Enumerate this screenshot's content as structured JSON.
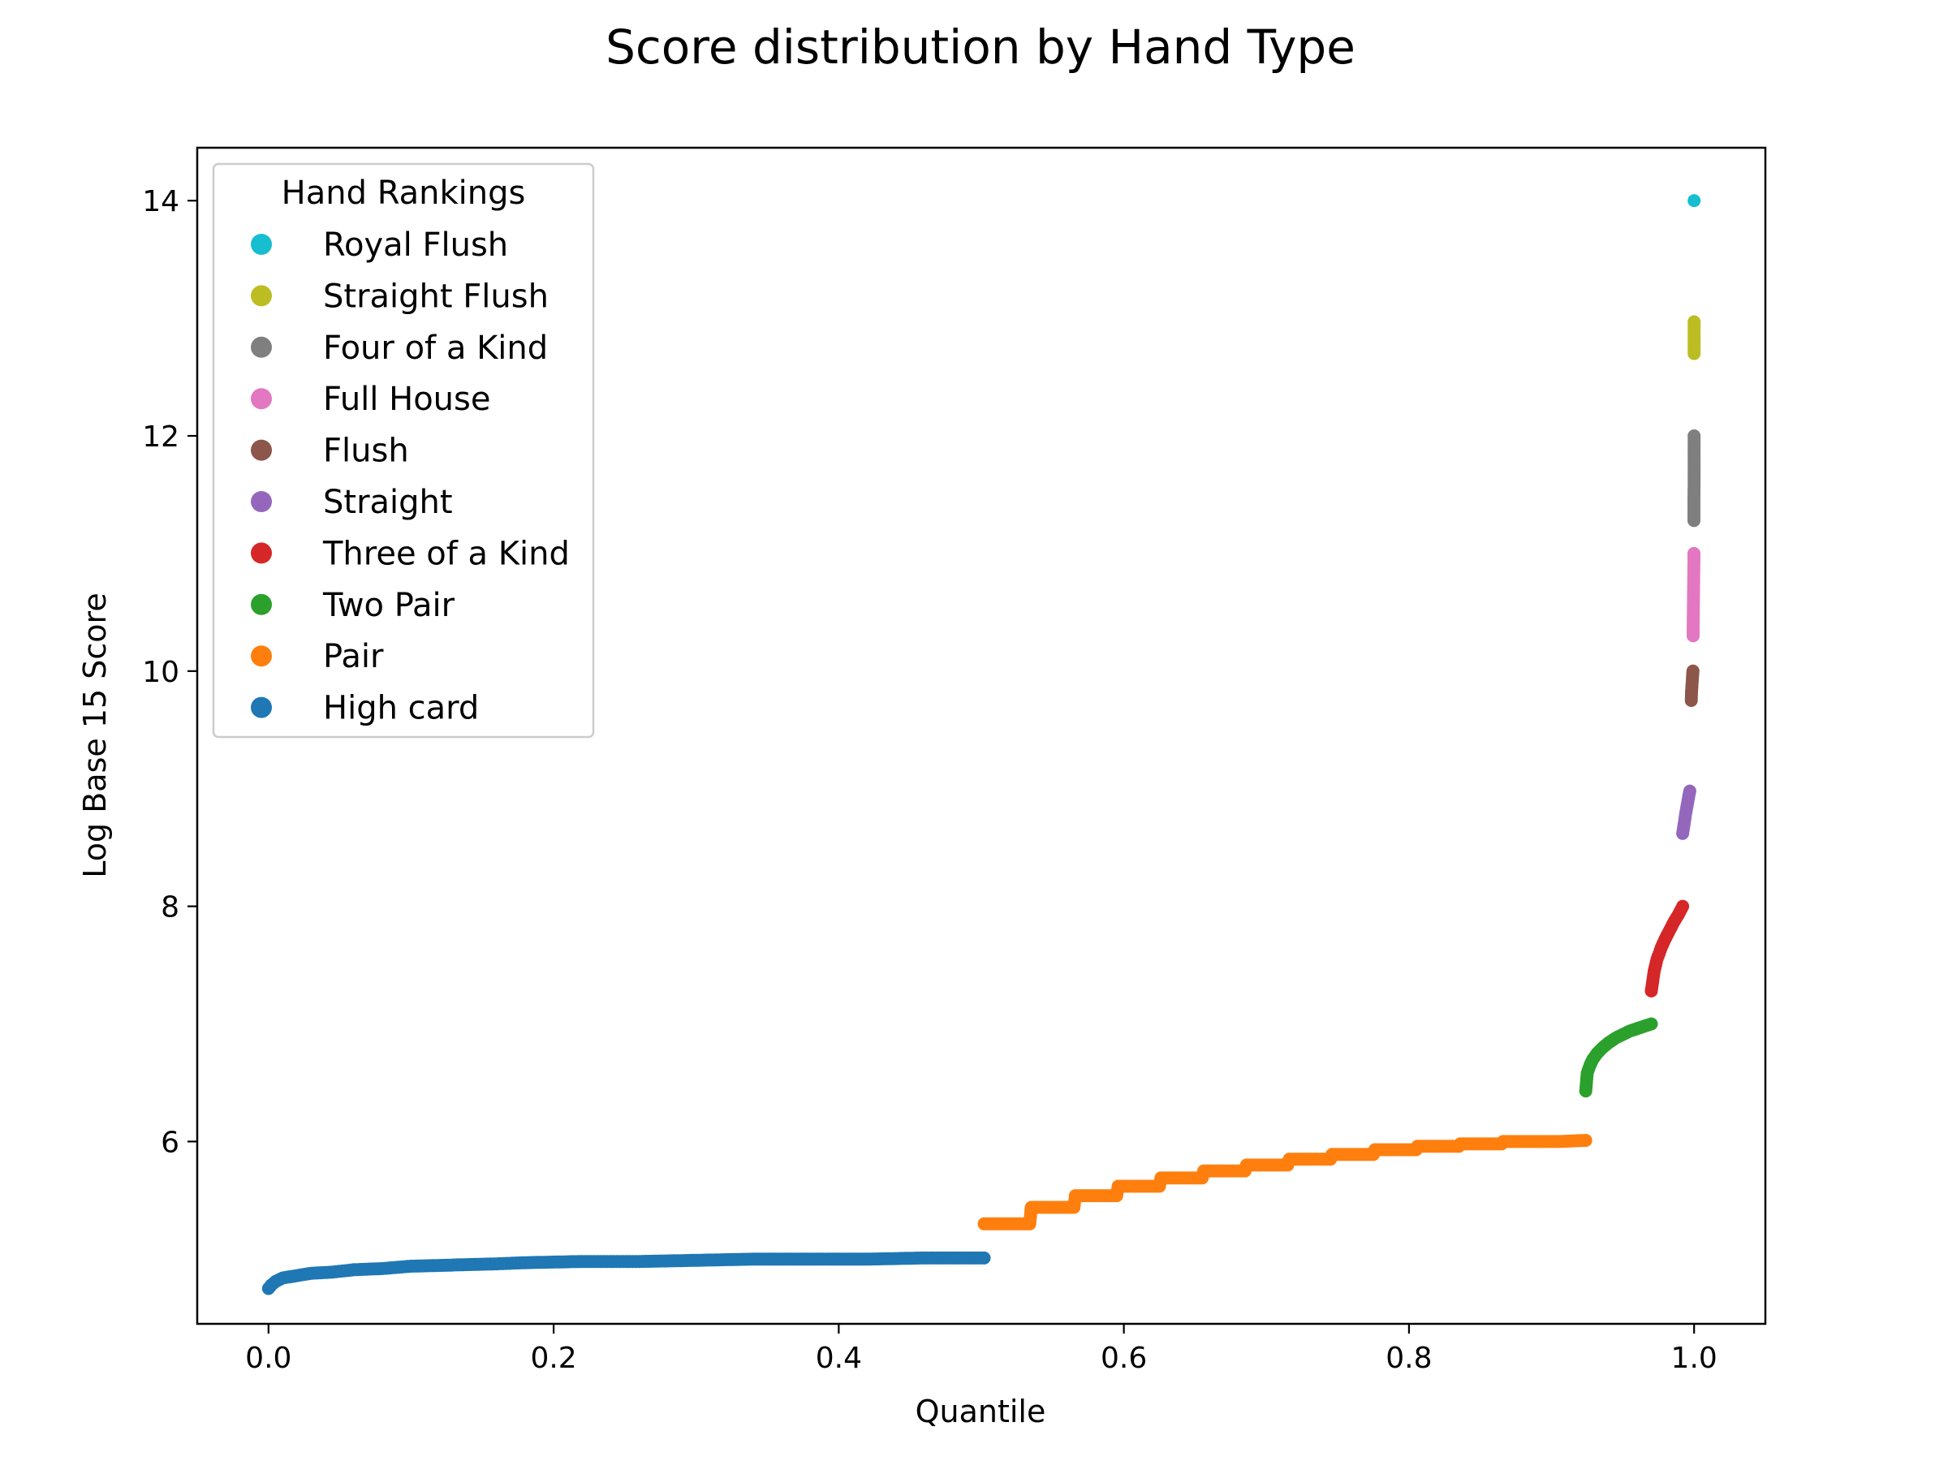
{
  "chart_data": {
    "type": "scatter",
    "title": "Score distribution by Hand Type",
    "xlabel": "Quantile",
    "ylabel": "Log Base 15 Score",
    "xlim": [
      -0.05,
      1.05
    ],
    "ylim": [
      4.45,
      14.45
    ],
    "xticks": [
      0.0,
      0.2,
      0.4,
      0.6,
      0.8,
      1.0
    ],
    "xtick_labels": [
      "0.0",
      "0.2",
      "0.4",
      "0.6",
      "0.8",
      "1.0"
    ],
    "yticks": [
      6,
      8,
      10,
      12,
      14
    ],
    "ytick_labels": [
      "6",
      "8",
      "10",
      "12",
      "14"
    ],
    "grid": false,
    "legend": {
      "title": "Hand Rankings",
      "placement": "upper-left",
      "entries": [
        {
          "name": "Royal Flush",
          "color": "#17becf"
        },
        {
          "name": "Straight Flush",
          "color": "#bcbd22"
        },
        {
          "name": "Four of a Kind",
          "color": "#7f7f7f"
        },
        {
          "name": "Full House",
          "color": "#e377c2"
        },
        {
          "name": "Flush",
          "color": "#8c564b"
        },
        {
          "name": "Straight",
          "color": "#9467bd"
        },
        {
          "name": "Three of a Kind",
          "color": "#d62728"
        },
        {
          "name": "Two Pair",
          "color": "#2ca02c"
        },
        {
          "name": "Pair",
          "color": "#ff7f0e"
        },
        {
          "name": "High card",
          "color": "#1f77b4"
        }
      ]
    },
    "series": [
      {
        "name": "High card",
        "color": "#1f77b4",
        "points": [
          [
            0.0,
            4.75
          ],
          [
            0.002,
            4.78
          ],
          [
            0.005,
            4.81
          ],
          [
            0.01,
            4.84
          ],
          [
            0.02,
            4.86
          ],
          [
            0.03,
            4.88
          ],
          [
            0.045,
            4.89
          ],
          [
            0.06,
            4.91
          ],
          [
            0.08,
            4.92
          ],
          [
            0.1,
            4.94
          ],
          [
            0.13,
            4.95
          ],
          [
            0.16,
            4.96
          ],
          [
            0.18,
            4.97
          ],
          [
            0.22,
            4.98
          ],
          [
            0.26,
            4.98
          ],
          [
            0.3,
            4.99
          ],
          [
            0.34,
            5.0
          ],
          [
            0.38,
            5.0
          ],
          [
            0.42,
            5.0
          ],
          [
            0.46,
            5.01
          ],
          [
            0.502,
            5.01
          ]
        ]
      },
      {
        "name": "Pair",
        "color": "#ff7f0e",
        "points": [
          [
            0.502,
            5.3
          ],
          [
            0.534,
            5.3
          ],
          [
            0.535,
            5.44
          ],
          [
            0.565,
            5.44
          ],
          [
            0.566,
            5.54
          ],
          [
            0.595,
            5.54
          ],
          [
            0.596,
            5.62
          ],
          [
            0.625,
            5.62
          ],
          [
            0.626,
            5.69
          ],
          [
            0.655,
            5.69
          ],
          [
            0.656,
            5.75
          ],
          [
            0.685,
            5.75
          ],
          [
            0.686,
            5.8
          ],
          [
            0.715,
            5.8
          ],
          [
            0.716,
            5.85
          ],
          [
            0.745,
            5.85
          ],
          [
            0.746,
            5.89
          ],
          [
            0.775,
            5.89
          ],
          [
            0.776,
            5.93
          ],
          [
            0.805,
            5.93
          ],
          [
            0.806,
            5.96
          ],
          [
            0.835,
            5.96
          ],
          [
            0.836,
            5.98
          ],
          [
            0.865,
            5.98
          ],
          [
            0.866,
            6.0
          ],
          [
            0.905,
            6.0
          ],
          [
            0.924,
            6.01
          ]
        ]
      },
      {
        "name": "Two Pair",
        "color": "#2ca02c",
        "points": [
          [
            0.924,
            6.43
          ],
          [
            0.925,
            6.58
          ],
          [
            0.927,
            6.65
          ],
          [
            0.929,
            6.7
          ],
          [
            0.932,
            6.75
          ],
          [
            0.936,
            6.8
          ],
          [
            0.94,
            6.84
          ],
          [
            0.945,
            6.88
          ],
          [
            0.95,
            6.91
          ],
          [
            0.955,
            6.94
          ],
          [
            0.96,
            6.96
          ],
          [
            0.965,
            6.98
          ],
          [
            0.97,
            7.0
          ]
        ]
      },
      {
        "name": "Three of a Kind",
        "color": "#d62728",
        "points": [
          [
            0.97,
            7.28
          ],
          [
            0.972,
            7.45
          ],
          [
            0.974,
            7.55
          ],
          [
            0.977,
            7.65
          ],
          [
            0.98,
            7.73
          ],
          [
            0.983,
            7.8
          ],
          [
            0.986,
            7.87
          ],
          [
            0.989,
            7.93
          ],
          [
            0.992,
            8.0
          ]
        ]
      },
      {
        "name": "Straight",
        "color": "#9467bd",
        "points": [
          [
            0.992,
            8.62
          ],
          [
            0.993,
            8.7
          ],
          [
            0.994,
            8.78
          ],
          [
            0.995,
            8.85
          ],
          [
            0.996,
            8.92
          ],
          [
            0.997,
            8.98
          ]
        ]
      },
      {
        "name": "Flush",
        "color": "#8c564b",
        "points": [
          [
            0.998,
            9.75
          ],
          [
            0.9982,
            9.82
          ],
          [
            0.9985,
            9.88
          ],
          [
            0.9988,
            9.93
          ],
          [
            0.999,
            9.97
          ],
          [
            0.9992,
            10.0
          ]
        ]
      },
      {
        "name": "Full House",
        "color": "#e377c2",
        "points": [
          [
            0.9993,
            10.3
          ],
          [
            0.9994,
            10.45
          ],
          [
            0.9995,
            10.55
          ],
          [
            0.9996,
            10.65
          ],
          [
            0.9997,
            10.75
          ],
          [
            0.9998,
            10.85
          ],
          [
            0.9999,
            10.95
          ],
          [
            0.9999,
            11.0
          ]
        ]
      },
      {
        "name": "Four of a Kind",
        "color": "#7f7f7f",
        "points": [
          [
            0.9999,
            11.28
          ],
          [
            0.9999,
            11.45
          ],
          [
            1.0,
            11.6
          ],
          [
            1.0,
            11.7
          ],
          [
            1.0,
            11.8
          ],
          [
            1.0,
            11.9
          ],
          [
            1.0,
            12.0
          ]
        ]
      },
      {
        "name": "Straight Flush",
        "color": "#bcbd22",
        "points": [
          [
            1.0,
            12.7
          ],
          [
            1.0,
            12.82
          ],
          [
            1.0,
            12.92
          ],
          [
            1.0,
            12.97
          ]
        ]
      },
      {
        "name": "Royal Flush",
        "color": "#17becf",
        "points": [
          [
            1.0,
            14.0
          ]
        ]
      }
    ]
  }
}
